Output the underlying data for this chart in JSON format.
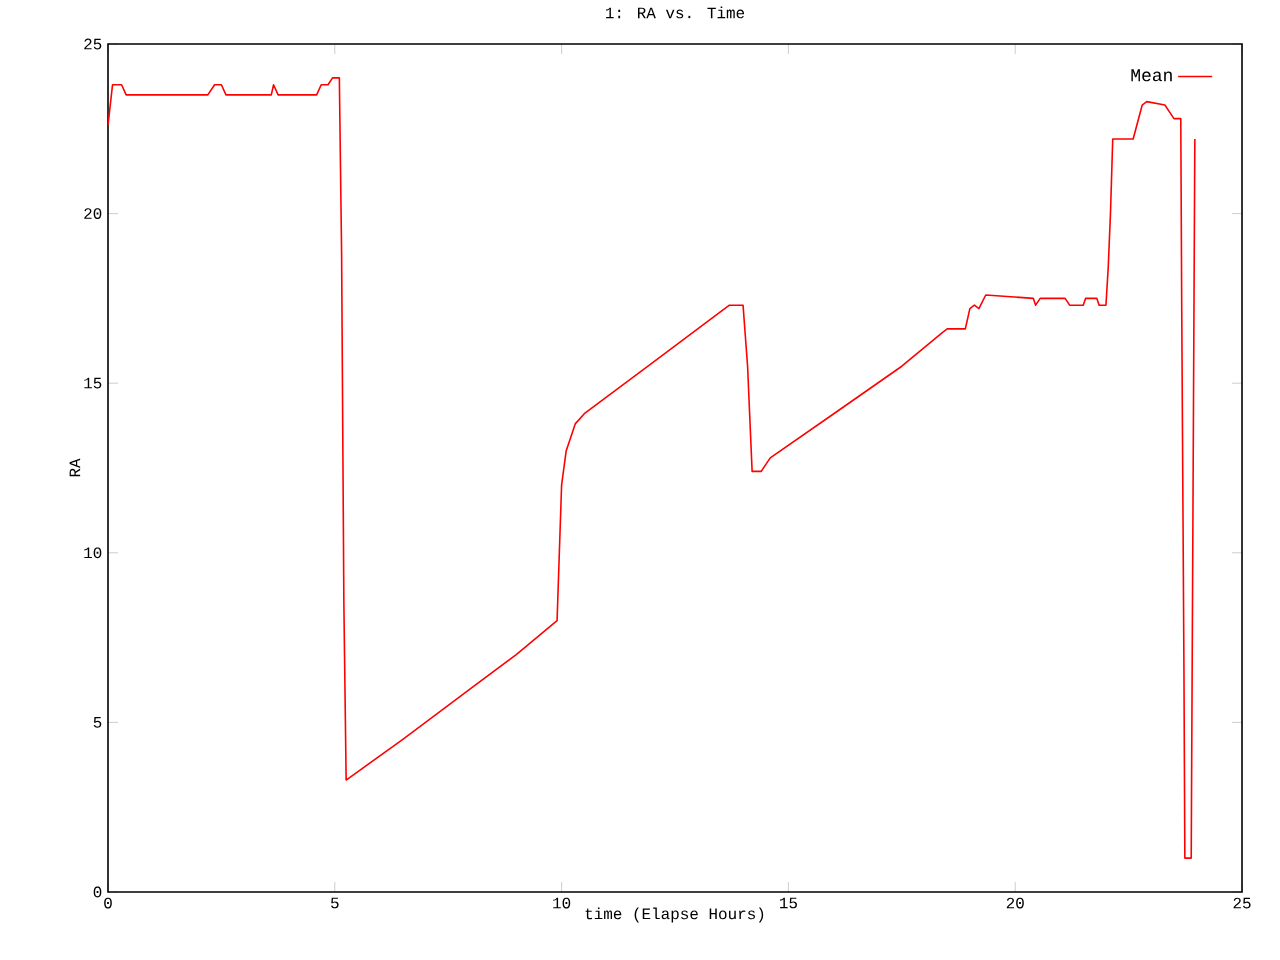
{
  "chart_data": {
    "type": "line",
    "title": "1: RA vs. Time",
    "xlabel": "time (Elapse Hours)",
    "ylabel": "RA",
    "xlim": [
      0,
      25
    ],
    "ylim": [
      0,
      25
    ],
    "xticks": [
      0,
      5,
      10,
      15,
      20,
      25
    ],
    "yticks": [
      0,
      5,
      10,
      15,
      20,
      25
    ],
    "grid": false,
    "legend": "top right",
    "marker": "none",
    "line_style": "solid",
    "x": [
      0,
      0.1,
      0.3,
      0.4,
      2.2,
      2.35,
      2.5,
      2.6,
      3.6,
      3.65,
      3.75,
      4.6,
      4.7,
      4.85,
      4.95,
      5.1,
      5.15,
      5.2,
      5.25,
      6.5,
      8,
      9,
      9.9,
      9.95,
      10.0,
      10.1,
      10.3,
      10.5,
      12,
      13.5,
      13.7,
      14.0,
      14.1,
      14.2,
      14.4,
      14.6,
      16,
      17.5,
      18.4,
      18.5,
      18.9,
      19.0,
      19.1,
      19.2,
      19.35,
      20.4,
      20.45,
      20.55,
      21.1,
      21.2,
      21.5,
      21.55,
      21.8,
      21.85,
      22.0,
      22.05,
      22.1,
      22.15,
      22.6,
      22.8,
      22.9,
      23.3,
      23.4,
      23.5,
      23.65,
      23.67,
      23.72,
      23.74,
      23.88,
      23.9,
      23.94,
      23.96
    ],
    "series": [
      {
        "name": "Mean",
        "color": "#ff0000",
        "values": [
          22.6,
          23.8,
          23.8,
          23.5,
          23.5,
          23.8,
          23.8,
          23.5,
          23.5,
          23.8,
          23.5,
          23.5,
          23.8,
          23.8,
          24.0,
          24.0,
          18.8,
          8.5,
          3.3,
          4.5,
          6.0,
          7.0,
          8.0,
          10.0,
          12.0,
          13.0,
          13.8,
          14.1,
          15.6,
          17.1,
          17.3,
          17.3,
          15.5,
          12.4,
          12.4,
          12.8,
          14.1,
          15.5,
          16.5,
          16.6,
          16.6,
          17.2,
          17.3,
          17.2,
          17.6,
          17.5,
          17.3,
          17.5,
          17.5,
          17.3,
          17.3,
          17.5,
          17.5,
          17.3,
          17.3,
          18.4,
          20.0,
          22.2,
          22.2,
          23.2,
          23.3,
          23.2,
          23.0,
          22.8,
          22.8,
          17.4,
          6.5,
          1.0,
          1.0,
          6.3,
          17.0,
          22.2
        ]
      }
    ]
  }
}
